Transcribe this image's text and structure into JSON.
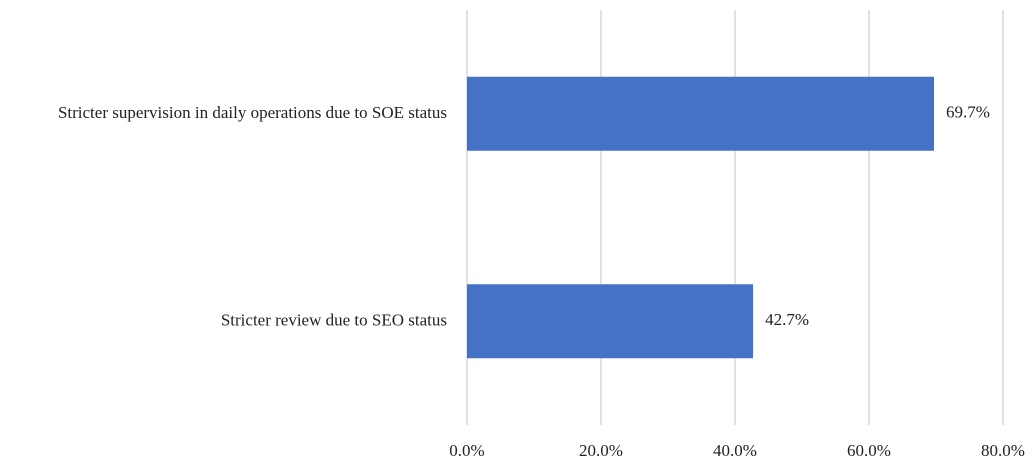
{
  "chart_data": {
    "type": "bar",
    "orientation": "horizontal",
    "categories": [
      "Stricter supervision in daily operations due to SOE status",
      "Stricter review due to SEO status"
    ],
    "values": [
      69.7,
      42.7
    ],
    "value_labels": [
      "69.7%",
      "42.7%"
    ],
    "color": "#4472c4",
    "xlim": [
      0,
      80
    ],
    "xticks": [
      {
        "value": 0,
        "label": "0.0%"
      },
      {
        "value": 20,
        "label": "20.0%"
      },
      {
        "value": 40,
        "label": "40.0%"
      },
      {
        "value": 60,
        "label": "60.0%"
      },
      {
        "value": 80,
        "label": "80.0%"
      }
    ],
    "grid": true
  }
}
